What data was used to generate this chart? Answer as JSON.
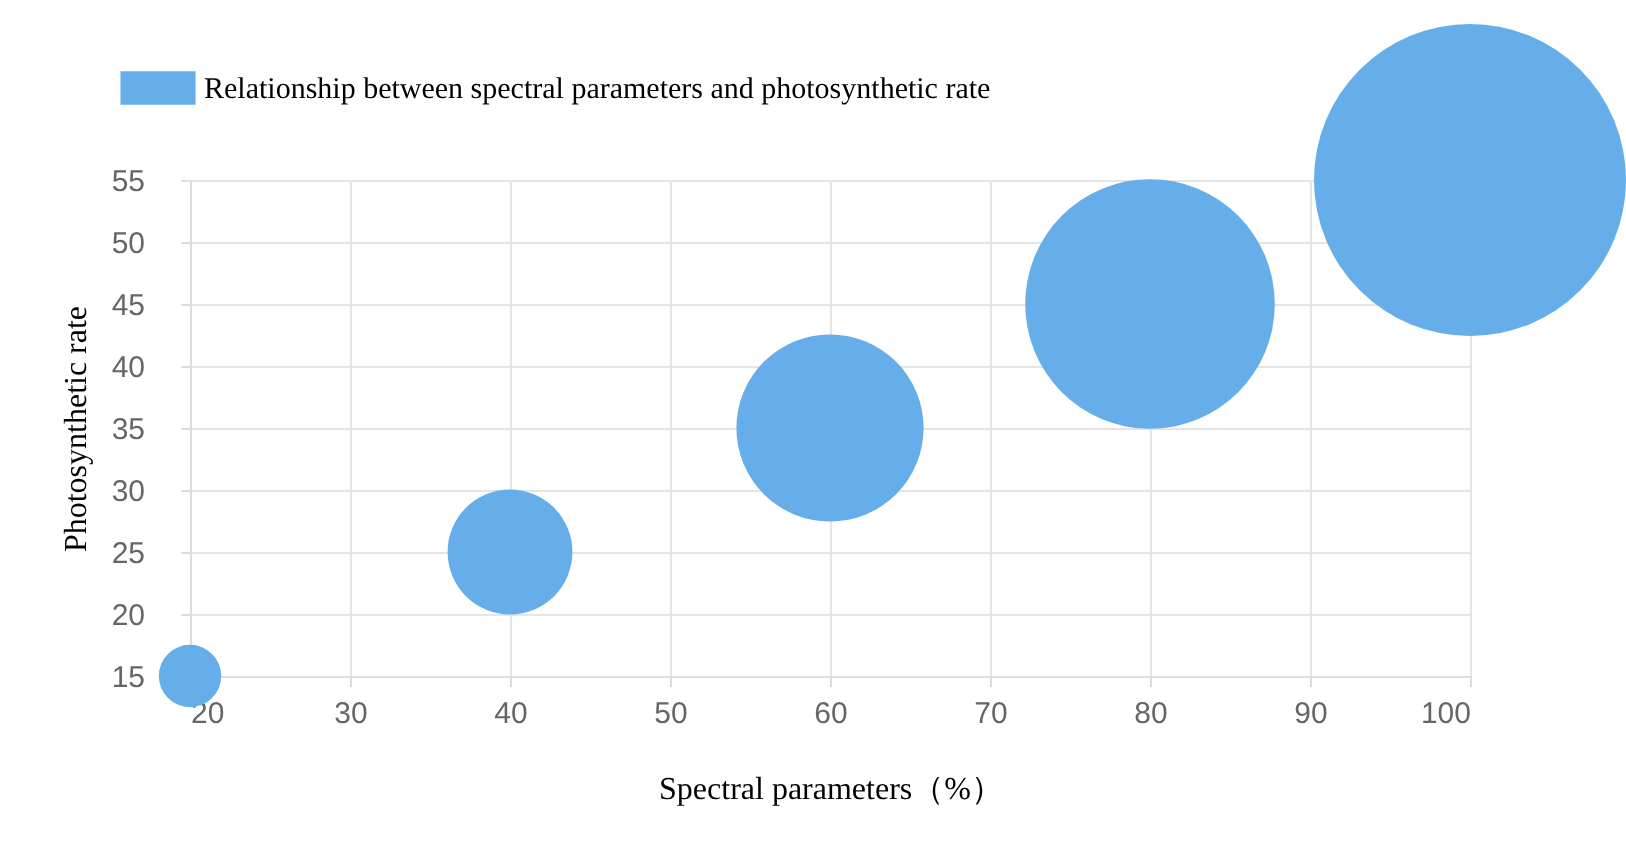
{
  "chart_data": {
    "type": "bubble",
    "xlabel": "Spectral parameters（%）",
    "ylabel": "Photosynthetic rate",
    "x": [
      20,
      40,
      60,
      80,
      100
    ],
    "series": [
      {
        "name": "Relationship between spectral parameters and photosynthetic rate",
        "color": "#66aee9",
        "values": [
          15,
          25,
          35,
          45,
          55
        ],
        "sizes": [
          0.04,
          0.16,
          0.36,
          0.64,
          1
        ]
      }
    ],
    "xlim": [
      20,
      100
    ],
    "xticks": [
      20,
      30,
      40,
      50,
      60,
      70,
      80,
      90,
      100
    ],
    "ylim": [
      15,
      55
    ],
    "yticks": [
      15,
      20,
      25,
      30,
      35,
      40,
      45,
      50,
      55
    ],
    "grid": true,
    "legend": "top left"
  }
}
